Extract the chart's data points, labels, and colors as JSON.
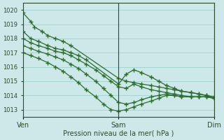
{
  "background_color": "#cce8e8",
  "plot_bg_color": "#cce8e8",
  "grid_color": "#99cccc",
  "line_color": "#2d6b2d",
  "marker_color": "#2d6b2d",
  "xlabel": "Pression niveau de la mer( hPa )",
  "ylim": [
    1012.5,
    1020.5
  ],
  "yticks": [
    1013,
    1014,
    1015,
    1016,
    1017,
    1018,
    1019,
    1020
  ],
  "xtick_labels": [
    "Ven",
    "Sam",
    "Dim"
  ],
  "xtick_positions": [
    0,
    0.5,
    1.0
  ],
  "series": [
    {
      "x": [
        0.0,
        0.04,
        0.06,
        0.1,
        0.13,
        0.17,
        0.21,
        0.25,
        0.5,
        0.54,
        0.58,
        0.62,
        0.67,
        0.71,
        0.75,
        0.79,
        0.83,
        0.88,
        0.92,
        0.96,
        1.0
      ],
      "y": [
        1019.8,
        1019.2,
        1018.8,
        1018.5,
        1018.2,
        1018.0,
        1017.8,
        1017.5,
        1015.2,
        1015.0,
        1014.9,
        1014.8,
        1014.7,
        1014.6,
        1014.5,
        1014.4,
        1014.3,
        1014.2,
        1014.1,
        1014.0,
        1013.9
      ]
    },
    {
      "x": [
        0.0,
        0.04,
        0.08,
        0.13,
        0.17,
        0.21,
        0.25,
        0.29,
        0.33,
        0.5,
        0.54,
        0.58,
        0.62,
        0.67,
        0.71,
        0.75,
        0.79,
        0.83,
        0.88,
        0.92,
        0.96,
        1.0
      ],
      "y": [
        1018.5,
        1018.0,
        1017.8,
        1017.5,
        1017.3,
        1017.2,
        1017.0,
        1016.8,
        1016.5,
        1014.8,
        1015.5,
        1015.8,
        1015.6,
        1015.3,
        1015.0,
        1014.7,
        1014.5,
        1014.3,
        1014.2,
        1014.1,
        1014.0,
        1013.8
      ]
    },
    {
      "x": [
        0.0,
        0.04,
        0.08,
        0.13,
        0.17,
        0.21,
        0.25,
        0.29,
        0.33,
        0.38,
        0.42,
        0.46,
        0.5,
        0.54,
        0.58,
        0.62,
        0.67,
        0.71,
        0.75,
        0.79,
        0.83,
        0.88,
        0.92,
        0.96,
        1.0
      ],
      "y": [
        1018.0,
        1017.7,
        1017.5,
        1017.3,
        1017.1,
        1017.0,
        1016.8,
        1016.5,
        1016.2,
        1015.8,
        1015.4,
        1015.0,
        1014.6,
        1014.5,
        1014.8,
        1014.6,
        1014.4,
        1014.3,
        1014.2,
        1014.1,
        1014.0,
        1013.9,
        1013.9,
        1013.9,
        1013.8
      ]
    },
    {
      "x": [
        0.0,
        0.04,
        0.08,
        0.13,
        0.17,
        0.21,
        0.25,
        0.29,
        0.33,
        0.38,
        0.42,
        0.46,
        0.5,
        0.54,
        0.58,
        0.62,
        0.67,
        0.71,
        0.75,
        0.79,
        0.83,
        0.88,
        0.92,
        0.96,
        1.0
      ],
      "y": [
        1017.5,
        1017.3,
        1017.1,
        1016.9,
        1016.7,
        1016.5,
        1016.2,
        1015.9,
        1015.5,
        1015.0,
        1014.5,
        1014.0,
        1013.5,
        1013.4,
        1013.5,
        1013.7,
        1013.9,
        1014.0,
        1014.1,
        1014.0,
        1013.9,
        1013.9,
        1013.9,
        1013.9,
        1013.8
      ]
    },
    {
      "x": [
        0.0,
        0.04,
        0.08,
        0.13,
        0.17,
        0.21,
        0.25,
        0.29,
        0.33,
        0.38,
        0.42,
        0.46,
        0.5,
        0.54,
        0.58,
        0.62,
        0.67,
        0.71,
        0.75,
        0.79,
        0.83,
        0.88,
        0.92,
        0.96,
        1.0
      ],
      "y": [
        1017.0,
        1016.8,
        1016.6,
        1016.3,
        1016.0,
        1015.7,
        1015.3,
        1014.9,
        1014.4,
        1013.9,
        1013.4,
        1013.0,
        1012.9,
        1013.0,
        1013.2,
        1013.4,
        1013.6,
        1013.8,
        1014.0,
        1014.0,
        1013.9,
        1013.9,
        1013.9,
        1013.9,
        1013.8
      ]
    }
  ]
}
